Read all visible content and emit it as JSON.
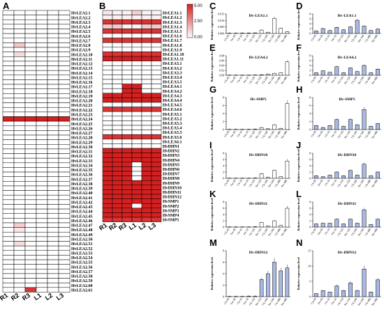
{
  "panel_letters": [
    "A",
    "B",
    "C",
    "D",
    "E",
    "F",
    "G",
    "H",
    "I",
    "J",
    "K",
    "L",
    "M",
    "N"
  ],
  "heatmap_A": {
    "columns": [
      "R1",
      "R2",
      "R3",
      "L1",
      "L2",
      "L3"
    ],
    "rows": [
      "HvLEA2.1",
      "HvLEA2.2",
      "HvLEA2.3",
      "HvLEA2.4",
      "HvLEA2.5",
      "HvLEA2.6",
      "HvLEA2.7",
      "HvLEA2.8",
      "HvLEA2.9",
      "HvLEA2.10",
      "HvLEA2.11",
      "HvLEA2.12",
      "HvLEA2.13",
      "HvLEA2.14",
      "HvLEA2.15",
      "HvLEA2.16",
      "HvLEA2.17",
      "HvLEA2.18",
      "HvLEA2.19",
      "HvLEA2.20",
      "HvLEA2.21",
      "HvLEA2.22",
      "HvLEA2.23",
      "HvLEA2.24",
      "HvLEA2.25",
      "HvLEA2.26",
      "HvLEA2.27",
      "HvLEA2.28",
      "HvLEA2.29",
      "HvLEA2.30",
      "HvLEA2.31",
      "HvLEA2.32",
      "HvLEA2.33",
      "HvLEA2.34",
      "HvLEA2.35",
      "HvLEA2.36",
      "HvLEA2.37",
      "HvLEA2.38",
      "HvLEA2.39",
      "HvLEA2.40",
      "HvLEA2.41",
      "HvLEA2.42",
      "HvLEA2.43",
      "HvLEA2.44",
      "HvLEA2.45",
      "HvLEA2.46",
      "HvLEA2.47",
      "HvLEA2.48",
      "HvLEA2.49",
      "HvLEA2.50",
      "HvLEA2.51",
      "HvLEA2.52",
      "HvLEA2.53",
      "HvLEA2.54",
      "HvLEA2.55",
      "HvLEA2.56",
      "HvLEA2.57",
      "HvLEA2.58",
      "HvLEA2.59",
      "HvLEA2.60",
      "HvLEA2.61"
    ],
    "values": [
      [
        0,
        0,
        0,
        0,
        0,
        0
      ],
      [
        0,
        0,
        0,
        0,
        0,
        0
      ],
      [
        0,
        0,
        0,
        0,
        0,
        0
      ],
      [
        0,
        0,
        0,
        0,
        0,
        0
      ],
      [
        0,
        0,
        0,
        0,
        0,
        0
      ],
      [
        0,
        0,
        0,
        0,
        0,
        0
      ],
      [
        0,
        0,
        0,
        0,
        0,
        0
      ],
      [
        0,
        1.2,
        0,
        0,
        0,
        0
      ],
      [
        0,
        0,
        0,
        0,
        0,
        0
      ],
      [
        0,
        0.8,
        0,
        0,
        0,
        0
      ],
      [
        0,
        0,
        0,
        0,
        0,
        0
      ],
      [
        0,
        0,
        0,
        0,
        0,
        0
      ],
      [
        0,
        0,
        0,
        0,
        0,
        0
      ],
      [
        0,
        0,
        0,
        0,
        0,
        0
      ],
      [
        0,
        0,
        0,
        0,
        0,
        0
      ],
      [
        0,
        0,
        0,
        0,
        0,
        0
      ],
      [
        0,
        0,
        0,
        0,
        0,
        0
      ],
      [
        0,
        0,
        0,
        0,
        0,
        0
      ],
      [
        0,
        0,
        0,
        0,
        0,
        0
      ],
      [
        0,
        0,
        0,
        0,
        0,
        0
      ],
      [
        0,
        0,
        0,
        0,
        0,
        0
      ],
      [
        0,
        0,
        0,
        0,
        0,
        0
      ],
      [
        0,
        0,
        0,
        0,
        0,
        0
      ],
      [
        5,
        5,
        5,
        5,
        5,
        5
      ],
      [
        0,
        0,
        0,
        0,
        0,
        0
      ],
      [
        0,
        0,
        0,
        0,
        0,
        0
      ],
      [
        0,
        0,
        0,
        0,
        0,
        0
      ],
      [
        0,
        0,
        0,
        0,
        0,
        0
      ],
      [
        0,
        0,
        0,
        0,
        0,
        0
      ],
      [
        0,
        0,
        0,
        0,
        0,
        0
      ],
      [
        0,
        0,
        0,
        0,
        0,
        0
      ],
      [
        0,
        0,
        0,
        0,
        0,
        0
      ],
      [
        0,
        0,
        0,
        0,
        0,
        0
      ],
      [
        0,
        0,
        0,
        0,
        0,
        0
      ],
      [
        0,
        0,
        0,
        0,
        0,
        0
      ],
      [
        0,
        0,
        0,
        0,
        0,
        0
      ],
      [
        0,
        0,
        0,
        0,
        0,
        0
      ],
      [
        0,
        0,
        0,
        0,
        0,
        0
      ],
      [
        0,
        0,
        0,
        0,
        0,
        0
      ],
      [
        0,
        0,
        0,
        0,
        0,
        0
      ],
      [
        0,
        0,
        0,
        0,
        0,
        0
      ],
      [
        0,
        0,
        0,
        0,
        0,
        0
      ],
      [
        0,
        0,
        0,
        0,
        0,
        0
      ],
      [
        0,
        0,
        0,
        0,
        0,
        0
      ],
      [
        0,
        0,
        0,
        0,
        0,
        0
      ],
      [
        0,
        0,
        0,
        0,
        0,
        0
      ],
      [
        0,
        1.1,
        0,
        0,
        0,
        0
      ],
      [
        0,
        0.6,
        0,
        0,
        0,
        0
      ],
      [
        0,
        0,
        0,
        0,
        0,
        0
      ],
      [
        0,
        0,
        0,
        0,
        0,
        0
      ],
      [
        0,
        0.8,
        0,
        0,
        0,
        0
      ],
      [
        0,
        0,
        0,
        0,
        0,
        0
      ],
      [
        0,
        0,
        0,
        0,
        0,
        0
      ],
      [
        0,
        0,
        0,
        0,
        0,
        0
      ],
      [
        0,
        0,
        0,
        0,
        0,
        0
      ],
      [
        0,
        0,
        0,
        0,
        0,
        0
      ],
      [
        0,
        0,
        0,
        0,
        0,
        0
      ],
      [
        0,
        0,
        0,
        0,
        0,
        0
      ],
      [
        0,
        0,
        0,
        0,
        0,
        0
      ],
      [
        0,
        0,
        0,
        0,
        0,
        0
      ],
      [
        0,
        0,
        4.5,
        0,
        0,
        0
      ]
    ]
  },
  "heatmap_B": {
    "columns": [
      "R1",
      "R2",
      "R3",
      "L1",
      "L2",
      "L3"
    ],
    "rows": [
      "HvLEA1.1",
      "HvLEA1.2",
      "HvLEA1.3",
      "HvLEA1.4",
      "HvLEA1.5",
      "HvLEA1.6",
      "HvLEA1.7",
      "HvLEA1.8",
      "HvLEA1.9",
      "HvLEA1.10",
      "HvLEA1.11",
      "HvLEA3.1",
      "HvLEA3.2",
      "HvLEA3.3",
      "HvLEA3.4",
      "HvLEA3.5",
      "HvLEA4.1",
      "HvLEA4.2",
      "HvLEA4.3",
      "HvLEA4.4",
      "HvLEA4.5",
      "HvLEA4.6",
      "HvLEA5.1",
      "HvLEA5.2",
      "HvLEA5.3",
      "HvLEA5.4",
      "HvLEA5.5",
      "HvLEA5.6",
      "HvLEA6.1",
      "HvDHN1",
      "HvDHN2",
      "HvDHN3",
      "HvDHN4",
      "HvDHN5",
      "HvDHN6",
      "HvDHN7",
      "HvDHN8",
      "HvDHN9",
      "HvDHN10",
      "HvDHN11",
      "HvDHN12",
      "HvSMP1",
      "HvSMP2",
      "HvSMP3",
      "HvSMP4",
      "HvSMP5"
    ],
    "values": [
      [
        0.5,
        0.3,
        0.3,
        1.0,
        0.3,
        0.3
      ],
      [
        0.3,
        0.3,
        0.3,
        0.3,
        0.3,
        0.3
      ],
      [
        4.5,
        4.5,
        4.5,
        4.5,
        4.5,
        4.5
      ],
      [
        1.2,
        1.2,
        0.3,
        0.3,
        1.2,
        1.2
      ],
      [
        4.5,
        4.5,
        4.5,
        4.5,
        4.5,
        4.5
      ],
      [
        0,
        0,
        0,
        0,
        0,
        0
      ],
      [
        4.5,
        4.5,
        4.5,
        4.5,
        4.5,
        4.5
      ],
      [
        0,
        0,
        0,
        0,
        0,
        0
      ],
      [
        0,
        0,
        0,
        0,
        0,
        0
      ],
      [
        4.5,
        4.5,
        4.5,
        4.5,
        4.5,
        4.5
      ],
      [
        5,
        5,
        5,
        5,
        5,
        5
      ],
      [
        0,
        0,
        0,
        0,
        0,
        0
      ],
      [
        0,
        0,
        0,
        0,
        0,
        0
      ],
      [
        0,
        0,
        0,
        0,
        0,
        0
      ],
      [
        0,
        0,
        0,
        0,
        0,
        0
      ],
      [
        0,
        0,
        0,
        0,
        0,
        0
      ],
      [
        0,
        0,
        5,
        5,
        0,
        0
      ],
      [
        0,
        0,
        5,
        5,
        0,
        0
      ],
      [
        5,
        5,
        5,
        5,
        5,
        5
      ],
      [
        5,
        5,
        5,
        5,
        5,
        5
      ],
      [
        0,
        0,
        0,
        0,
        0,
        0
      ],
      [
        4.5,
        4.5,
        4.5,
        4.5,
        4.5,
        4.5
      ],
      [
        0,
        0,
        0,
        0,
        0,
        0
      ],
      [
        0,
        0,
        0,
        0,
        0,
        0
      ],
      [
        0,
        0,
        0,
        0,
        0,
        0
      ],
      [
        0,
        0,
        0,
        0,
        0,
        0
      ],
      [
        0,
        0,
        0,
        0,
        0,
        0
      ],
      [
        4.5,
        4.5,
        4.5,
        4.5,
        4.5,
        4.5
      ],
      [
        0,
        0,
        0,
        0,
        0,
        0
      ],
      [
        0,
        0,
        0,
        0,
        0,
        0
      ],
      [
        5,
        5,
        5,
        5,
        5,
        5
      ],
      [
        5,
        5,
        5,
        5,
        5,
        5
      ],
      [
        5,
        5,
        5,
        5,
        5,
        5
      ],
      [
        5,
        5,
        5,
        0,
        5,
        5
      ],
      [
        5,
        5,
        5,
        0,
        5,
        5
      ],
      [
        5,
        5,
        5,
        0,
        5,
        5
      ],
      [
        5,
        5,
        5,
        0,
        5,
        5
      ],
      [
        5,
        5,
        5,
        5,
        5,
        5
      ],
      [
        5,
        5,
        5,
        5,
        5,
        5
      ],
      [
        5,
        5,
        5,
        5,
        5,
        5
      ],
      [
        5,
        5,
        5,
        5,
        5,
        5
      ],
      [
        5,
        5,
        5,
        5,
        5,
        5
      ],
      [
        5,
        5,
        5,
        0,
        5,
        5
      ],
      [
        5,
        5,
        5,
        5,
        5,
        5
      ],
      [
        5,
        5,
        5,
        5,
        5,
        5
      ],
      [
        4.5,
        4.5,
        4.5,
        4.5,
        4.5,
        4.5
      ]
    ],
    "legend_ticks": [
      "5.00",
      "2.50",
      "0.00"
    ]
  },
  "bar_charts": [
    {
      "letter": "C",
      "title": "Hv-LEA1.1",
      "yticks": [
        "0.000",
        "0.005",
        "0.010",
        "0.015"
      ],
      "ymax": 0.016,
      "ylabel": "Relative expression level",
      "color": "#ffffff",
      "categories": [
        "Ck-0h",
        "Sw-0h",
        "Ck-1h",
        "Sw-1h",
        "Ck-12h",
        "Sw-12h",
        "Ck-24h",
        "Sw-24h",
        "Ck-48h",
        "Sw-48h"
      ],
      "values": [
        0.0002,
        0.0002,
        0.0003,
        0.0003,
        0.0005,
        0.0026,
        0.0009,
        0.0115,
        0.0039,
        0.0014
      ]
    },
    {
      "letter": "D",
      "title": "Hv-LEA1.1",
      "yticks": [
        "0",
        "2",
        "4",
        "6",
        "8"
      ],
      "ymax": 8,
      "ylabel": "Relative expression level",
      "color": "#a9b9e3",
      "categories": [
        "Ck-0h",
        "Sw-0h",
        "Ck-1h",
        "Sw-1h",
        "Ck-12h",
        "Sw-12h",
        "Ck-24h",
        "Sw-24h",
        "Ck-48h",
        "Sw-48h"
      ],
      "values": [
        1.0,
        2.0,
        1.2,
        2.5,
        1.5,
        2.7,
        5.4,
        3.0,
        1.2,
        1.8
      ]
    },
    {
      "letter": "E",
      "title": "Hv-LEA4.2",
      "yticks": [
        "0.00",
        "0.02",
        "0.04",
        "0.06",
        "0.08"
      ],
      "ymax": 0.08,
      "ylabel": "Relative expression level",
      "color": "#ffffff",
      "categories": [
        "Ck-0h",
        "Sw-0h",
        "Ck-1h",
        "Sw-1h",
        "Ck-12h",
        "Sw-12h",
        "Ck-24h",
        "Sw-24h",
        "Ck-48h",
        "Sw-48h"
      ],
      "values": [
        0.0005,
        0.0005,
        0.0005,
        0.0005,
        0.001,
        0.002,
        0.005,
        0.008,
        0.01,
        0.055
      ]
    },
    {
      "letter": "F",
      "title": "Hv-LEA4.2",
      "yticks": [
        "0",
        "2",
        "4",
        "6",
        "8"
      ],
      "ymax": 8,
      "ylabel": "Relative expression level",
      "color": "#a9b9e3",
      "categories": [
        "Ck-0h",
        "Sw-0h",
        "Ck-1h",
        "Sw-1h",
        "Ck-12h",
        "Sw-12h",
        "Ck-24h",
        "Sw-24h",
        "Ck-48h",
        "Sw-48h"
      ],
      "values": [
        1.0,
        1.8,
        1.2,
        3.5,
        1.0,
        3.0,
        1.5,
        4.0,
        1.0,
        2.5
      ]
    },
    {
      "letter": "G",
      "title": "Hv-SMP5",
      "yticks": [
        "0",
        "2",
        "4",
        "6",
        "8"
      ],
      "ymax": 8,
      "ylabel": "Relative expression level",
      "color": "#ffffff",
      "categories": [
        "Ck-0h",
        "Sw-0h",
        "Ck-1h",
        "Sw-1h",
        "Ck-12h",
        "Sw-12h",
        "Ck-24h",
        "Sw-24h",
        "Ck-48h",
        "Sw-48h"
      ],
      "values": [
        0.05,
        0.05,
        0.05,
        0.05,
        0.1,
        0.5,
        0.2,
        1.2,
        0.3,
        6.5
      ]
    },
    {
      "letter": "H",
      "title": "Hv-SMP5",
      "yticks": [
        "0",
        "2",
        "4",
        "6",
        "8"
      ],
      "ymax": 8,
      "ylabel": "Relative expression level",
      "color": "#a9b9e3",
      "categories": [
        "Ck-0h",
        "Sw-0h",
        "Ck-1h",
        "Sw-1h",
        "Ck-12h",
        "Sw-12h",
        "Ck-24h",
        "Sw-24h",
        "Ck-48h",
        "Sw-48h"
      ],
      "values": [
        1.0,
        0.5,
        1.0,
        2.5,
        0.8,
        2.5,
        1.2,
        5.0,
        0.8,
        1.5
      ]
    },
    {
      "letter": "I",
      "title": "Hv-DHN10",
      "yticks": [
        "0",
        "2",
        "4",
        "6",
        "8"
      ],
      "ymax": 8,
      "ylabel": "Relative expression level",
      "color": "#ffffff",
      "categories": [
        "Ck-0h",
        "Sw-0h",
        "Ck-1h",
        "Sw-1h",
        "Ck-12h",
        "Sw-12h",
        "Ck-24h",
        "Sw-24h",
        "Ck-48h",
        "Sw-48h"
      ],
      "values": [
        0.05,
        0.05,
        0.05,
        0.05,
        0.1,
        1.5,
        0.3,
        2.5,
        0.5,
        5.5
      ]
    },
    {
      "letter": "J",
      "title": "Hv-DHN10",
      "yticks": [
        "0",
        "2",
        "4",
        "6",
        "8"
      ],
      "ymax": 8,
      "ylabel": "Relative expression level",
      "color": "#a9b9e3",
      "categories": [
        "Ck-0h",
        "Sw-0h",
        "Ck-1h",
        "Sw-1h",
        "Ck-12h",
        "Sw-12h",
        "Ck-24h",
        "Sw-24h",
        "Ck-48h",
        "Sw-48h"
      ],
      "values": [
        0.8,
        0.5,
        1.0,
        2.0,
        0.8,
        2.5,
        1.0,
        4.5,
        0.8,
        2.0
      ]
    },
    {
      "letter": "K",
      "title": "Hv-DHN11",
      "yticks": [
        "0",
        "2",
        "4",
        "6",
        "8"
      ],
      "ymax": 8,
      "ylabel": "Relative expression level",
      "color": "#ffffff",
      "categories": [
        "Ck-0h",
        "Sw-0h",
        "Ck-1h",
        "Sw-1h",
        "Ck-12h",
        "Sw-12h",
        "Ck-24h",
        "Sw-24h",
        "Ck-48h",
        "Sw-48h"
      ],
      "values": [
        0.05,
        0.05,
        0.05,
        0.05,
        0.1,
        1.5,
        0.3,
        2.0,
        0.5,
        6.0
      ]
    },
    {
      "letter": "L",
      "title": "Hv-DHN11",
      "yticks": [
        "0",
        "2",
        "4",
        "6",
        "8"
      ],
      "ymax": 8,
      "ylabel": "Relative expression level",
      "color": "#a9b9e3",
      "categories": [
        "Ck-0h",
        "Sw-0h",
        "Ck-1h",
        "Sw-1h",
        "Ck-12h",
        "Sw-12h",
        "Ck-24h",
        "Sw-24h",
        "Ck-48h",
        "Sw-48h"
      ],
      "values": [
        1.0,
        1.2,
        1.2,
        2.5,
        1.0,
        2.5,
        1.2,
        5.5,
        0.8,
        2.5
      ]
    },
    {
      "letter": "M",
      "title": "Hv-DHN12",
      "yticks": [
        "0",
        "2",
        "4",
        "6",
        "8"
      ],
      "ymax": 8,
      "ylabel": "Relative expression level",
      "color": "#a9b9e3",
      "categories": [
        "Ck-0h",
        "Sw-0h",
        "Ck-1h",
        "Sw-1h",
        "Ck-12h",
        "Sw-12h",
        "Ck-24h",
        "Sw-24h",
        "Ck-48h",
        "Sw-48h"
      ],
      "values": [
        0.05,
        0.05,
        0.05,
        0.1,
        0.1,
        3.0,
        4.0,
        6.0,
        4.5,
        5.0
      ]
    },
    {
      "letter": "N",
      "title": "Hv-DHN12",
      "yticks": [
        "0",
        "5",
        "10",
        "15"
      ],
      "ymax": 15,
      "ylabel": "Relative expression level",
      "color": "#a9b9e3",
      "categories": [
        "Ck-0h",
        "Sw-0h",
        "Ck-1h",
        "Sw-1h",
        "Ck-12h",
        "Sw-12h",
        "Ck-24h",
        "Sw-24h",
        "Ck-48h",
        "Sw-48h"
      ],
      "values": [
        1.0,
        2.0,
        1.5,
        3.5,
        2.0,
        4.5,
        2.0,
        9.0,
        1.5,
        5.5
      ]
    }
  ],
  "colors": {
    "high": "#d42020",
    "low": "#ffffff",
    "grid": "#000000",
    "bar_blue": "#a9b9e3"
  }
}
